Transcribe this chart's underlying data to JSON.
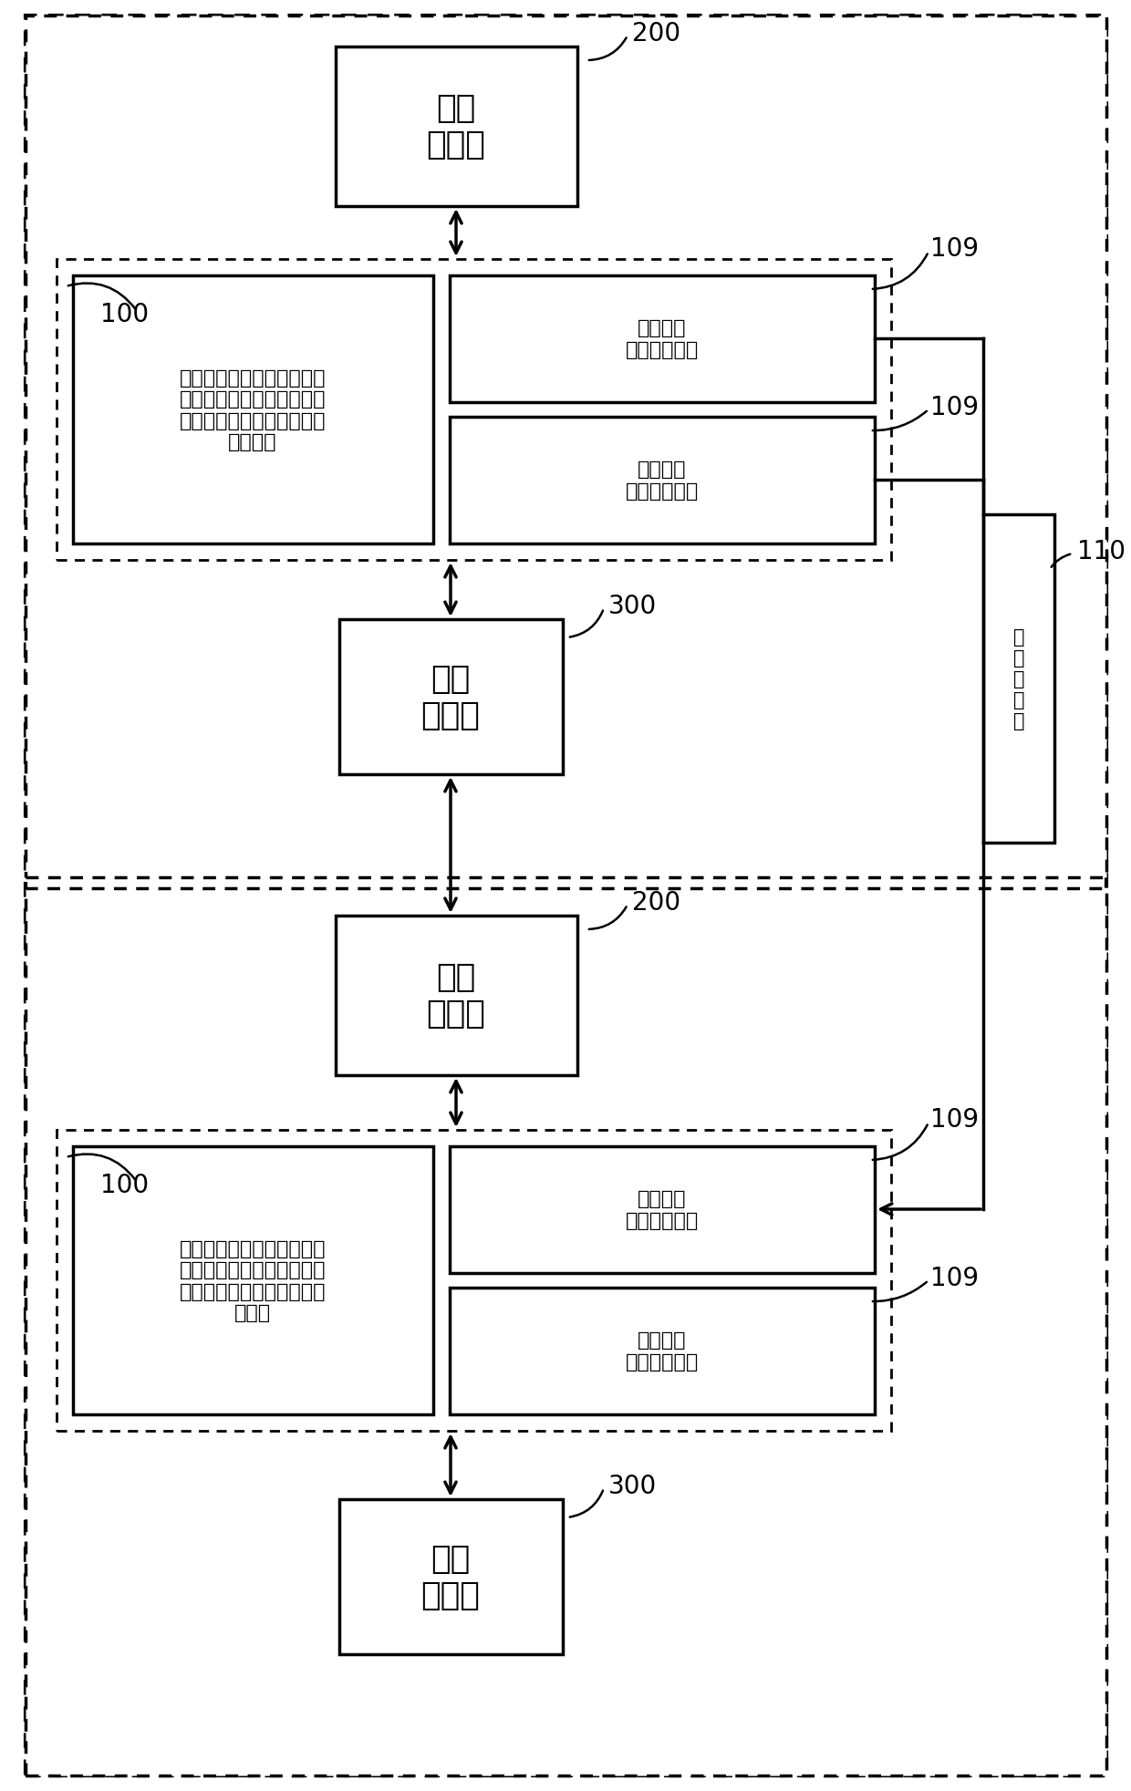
{
  "bg_color": "#ffffff",
  "box1_title": "固定\n结构件",
  "box2_left_title": "网罩、防水布、前壳体、防\n水圈、降压变压器、无源声\n强显示组件、防水扬声器、\n后壳体。",
  "box2_right_top_title": "防水插件\n连接座输入端",
  "box2_right_bot_title": "防水插件\n连接座输出端",
  "box3_title": "串接\n紧固件",
  "box_water_line": "防\n水\n连\n接\n线",
  "box4_title": "固定\n结构件",
  "box5_left_title": "网罩、防水布、前壳体、防\n水圈、降压变压器、无源声\n强显示组件、防水扬声器、\n后壳。",
  "box5_right_top_title": "防水插件\n连接座输入端",
  "box5_right_bot_title": "防水插件\n连接座输出端",
  "box6_title": "串接\n紧固件",
  "label_200_1": "200",
  "label_100_1": "100",
  "label_109_1a": "109",
  "label_109_1b": "109",
  "label_300_1": "300",
  "label_110": "110",
  "label_200_2": "200",
  "label_100_2": "100",
  "label_109_2a": "109",
  "label_109_2b": "109",
  "label_300_2": "300"
}
